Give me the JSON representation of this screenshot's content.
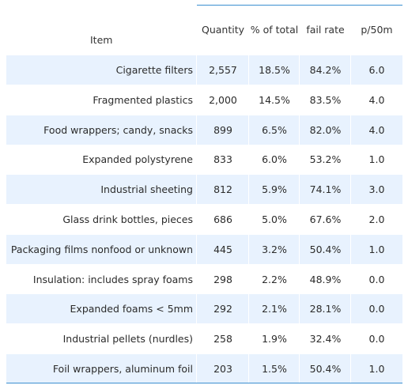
{
  "chart_data": {
    "type": "table",
    "columns": [
      "Item",
      "Quantity",
      "% of total",
      "fail rate",
      "p/50m"
    ],
    "rows": [
      [
        "Cigarette filters",
        "2,557",
        "18.5%",
        "84.2%",
        "6.0"
      ],
      [
        "Fragmented plastics",
        "2,000",
        "14.5%",
        "83.5%",
        "4.0"
      ],
      [
        "Food wrappers; candy, snacks",
        "899",
        "6.5%",
        "82.0%",
        "4.0"
      ],
      [
        "Expanded polystyrene",
        "833",
        "6.0%",
        "53.2%",
        "1.0"
      ],
      [
        "Industrial sheeting",
        "812",
        "5.9%",
        "74.1%",
        "3.0"
      ],
      [
        "Glass drink bottles, pieces",
        "686",
        "5.0%",
        "67.6%",
        "2.0"
      ],
      [
        "Packaging films nonfood or unknown",
        "445",
        "3.2%",
        "50.4%",
        "1.0"
      ],
      [
        "Insulation: includes spray foams",
        "298",
        "2.2%",
        "48.9%",
        "0.0"
      ],
      [
        "Expanded foams < 5mm",
        "292",
        "2.1%",
        "28.1%",
        "0.0"
      ],
      [
        "Industrial pellets (nurdles)",
        "258",
        "1.9%",
        "32.4%",
        "0.0"
      ],
      [
        "Foil wrappers, aluminum foil",
        "203",
        "1.5%",
        "50.4%",
        "1.0"
      ]
    ],
    "row_shading": "alternating",
    "colors": {
      "band": "#e8f2fe",
      "rule": "#3b8fd0",
      "text": "#2b2b2b"
    }
  }
}
